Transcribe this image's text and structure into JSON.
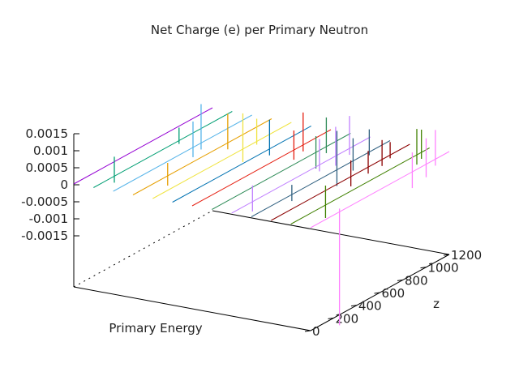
{
  "chart_data": {
    "type": "line",
    "title": "Net Charge (e) per Primary Neutron",
    "xlabel": "Primary Energy",
    "ylabel": "z",
    "zlabel": "",
    "z_ticks": [
      "0.0015",
      "0.001",
      "0.0005",
      "0",
      "-0.0005",
      "-0.001",
      "-0.0015"
    ],
    "depth_ticks": [
      "0",
      "200",
      "400",
      "600",
      "800",
      "1000",
      "1200"
    ],
    "depth_range": [
      0,
      1200
    ],
    "grid": false,
    "legend": "none",
    "series": [
      {
        "color": "#9400d3",
        "spikes": []
      },
      {
        "color": "#009e73",
        "spikes": [
          [
            180,
            0.0006,
            -0.0002
          ],
          [
            740,
            0.0004,
            -0.0001
          ]
        ]
      },
      {
        "color": "#56b4e9",
        "spikes": [
          [
            690,
            0.0008,
            -0.0003
          ],
          [
            760,
            0.0012,
            -0.0002
          ]
        ]
      },
      {
        "color": "#e69f00",
        "spikes": [
          [
            300,
            0.0004,
            -0.0003
          ],
          [
            820,
            0.0009,
            -0.0002
          ]
        ]
      },
      {
        "color": "#f0e442",
        "spikes": [
          [
            780,
            0.0011,
            -0.0004
          ],
          [
            900,
            0.0007,
            -0.0001
          ]
        ]
      },
      {
        "color": "#0072b2",
        "spikes": [
          [
            840,
            0.0009,
            -0.0002
          ]
        ]
      },
      {
        "color": "#e51e10",
        "spikes": [
          [
            880,
            0.0006,
            -0.0003
          ],
          [
            960,
            0.001,
            -0.0002
          ]
        ]
      },
      {
        "color": "#2e8b57",
        "spikes": [
          [
            900,
            0.0005,
            -0.0005
          ],
          [
            990,
            0.0009,
            -0.0002
          ]
        ]
      },
      {
        "color": "#c080ff",
        "spikes": [
          [
            180,
            0.0005,
            -0.0003
          ],
          [
            760,
            0.0008,
            -0.0002
          ],
          [
            900,
            0.0009,
            -0.0003
          ],
          [
            1020,
            0.001,
            -0.0002
          ]
        ]
      },
      {
        "color": "#306080",
        "spikes": [
          [
            350,
            0.0003,
            -0.0002
          ],
          [
            740,
            0.0012,
            -0.0005
          ],
          [
            880,
            0.0007,
            -0.0003
          ],
          [
            1020,
            0.0007,
            -0.0001
          ]
        ]
      },
      {
        "color": "#8b0000",
        "spikes": [
          [
            690,
            0.0005,
            -0.0003
          ],
          [
            840,
            0.0005,
            -0.0002
          ],
          [
            960,
            0.0006,
            -0.0002
          ],
          [
            1030,
            0.0004,
            -0.0001
          ]
        ]
      },
      {
        "color": "#408000",
        "spikes": [
          [
            300,
            0.0006,
            -0.0004
          ],
          [
            1090,
            0.0008,
            -0.0003
          ],
          [
            1130,
            0.0007,
            -0.0002
          ]
        ]
      },
      {
        "color": "#ff80ff",
        "spikes": [
          [
            250,
            0.0001,
            -0.0035
          ],
          [
            880,
            0.0006,
            -0.0005
          ],
          [
            1000,
            0.0008,
            -0.0004
          ],
          [
            1080,
            0.0009,
            -0.0002
          ]
        ]
      }
    ]
  }
}
